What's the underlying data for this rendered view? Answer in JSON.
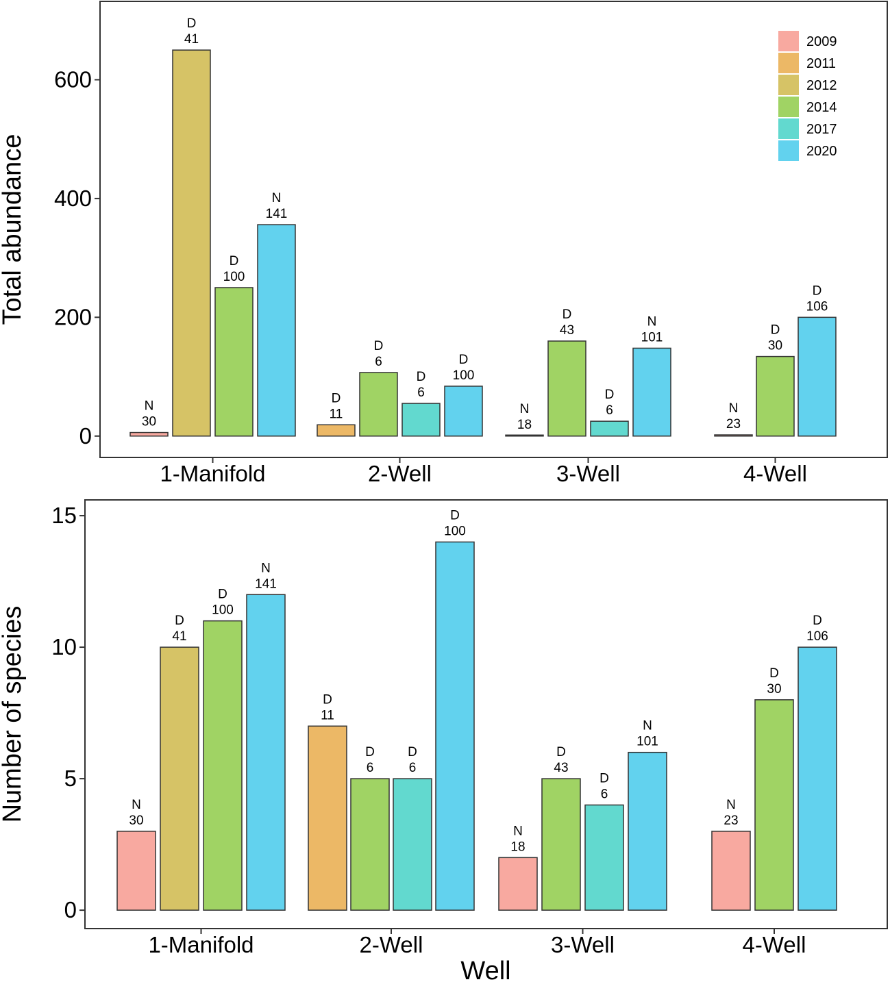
{
  "chart_data": [
    {
      "type": "bar",
      "ylabel": "Total abundance",
      "xlabel": "",
      "ylim": [
        -36,
        732
      ],
      "yticks": [
        0,
        200,
        400,
        600
      ],
      "categories": [
        "1-Manifold",
        "2-Well",
        "3-Well",
        "4-Well"
      ],
      "groups": [
        {
          "category": "1-Manifold",
          "bars": [
            {
              "year": "2009",
              "value": 6,
              "code": "N",
              "count": "30"
            },
            {
              "year": "2012",
              "value": 650,
              "code": "D",
              "count": "41"
            },
            {
              "year": "2014",
              "value": 250,
              "code": "D",
              "count": "100"
            },
            {
              "year": "2020",
              "value": 356,
              "code": "N",
              "count": "141"
            }
          ]
        },
        {
          "category": "2-Well",
          "bars": [
            {
              "year": "2011",
              "value": 19,
              "code": "D",
              "count": "11"
            },
            {
              "year": "2014",
              "value": 107,
              "code": "D",
              "count": "6"
            },
            {
              "year": "2017",
              "value": 55,
              "code": "D",
              "count": "6"
            },
            {
              "year": "2020",
              "value": 84,
              "code": "D",
              "count": "100"
            }
          ]
        },
        {
          "category": "3-Well",
          "bars": [
            {
              "year": "2009",
              "value": 1,
              "code": "N",
              "count": "18"
            },
            {
              "year": "2014",
              "value": 160,
              "code": "D",
              "count": "43"
            },
            {
              "year": "2017",
              "value": 25,
              "code": "D",
              "count": "6"
            },
            {
              "year": "2020",
              "value": 148,
              "code": "N",
              "count": "101"
            }
          ]
        },
        {
          "category": "4-Well",
          "bars": [
            {
              "year": "2009",
              "value": 2,
              "code": "N",
              "count": "23"
            },
            {
              "year": "2014",
              "value": 134,
              "code": "D",
              "count": "30"
            },
            {
              "year": "2020",
              "value": 200,
              "code": "D",
              "count": "106"
            }
          ]
        }
      ]
    },
    {
      "type": "bar",
      "ylabel": "Number of species",
      "xlabel": "Well",
      "ylim": [
        -0.7,
        15.6
      ],
      "yticks": [
        0,
        5,
        10,
        15
      ],
      "categories": [
        "1-Manifold",
        "2-Well",
        "3-Well",
        "4-Well"
      ],
      "groups": [
        {
          "category": "1-Manifold",
          "bars": [
            {
              "year": "2009",
              "value": 3,
              "code": "N",
              "count": "30"
            },
            {
              "year": "2012",
              "value": 10,
              "code": "D",
              "count": "41"
            },
            {
              "year": "2014",
              "value": 11,
              "code": "D",
              "count": "100"
            },
            {
              "year": "2020",
              "value": 12,
              "code": "N",
              "count": "141"
            }
          ]
        },
        {
          "category": "2-Well",
          "bars": [
            {
              "year": "2011",
              "value": 7,
              "code": "D",
              "count": "11"
            },
            {
              "year": "2014",
              "value": 5,
              "code": "D",
              "count": "6"
            },
            {
              "year": "2017",
              "value": 5,
              "code": "D",
              "count": "6"
            },
            {
              "year": "2020",
              "value": 14,
              "code": "D",
              "count": "100"
            }
          ]
        },
        {
          "category": "3-Well",
          "bars": [
            {
              "year": "2009",
              "value": 2,
              "code": "N",
              "count": "18"
            },
            {
              "year": "2014",
              "value": 5,
              "code": "D",
              "count": "43"
            },
            {
              "year": "2017",
              "value": 4,
              "code": "D",
              "count": "6"
            },
            {
              "year": "2020",
              "value": 6,
              "code": "N",
              "count": "101"
            }
          ]
        },
        {
          "category": "4-Well",
          "bars": [
            {
              "year": "2009",
              "value": 3,
              "code": "N",
              "count": "23"
            },
            {
              "year": "2014",
              "value": 8,
              "code": "D",
              "count": "30"
            },
            {
              "year": "2020",
              "value": 10,
              "code": "D",
              "count": "106"
            }
          ]
        }
      ]
    }
  ],
  "legend": {
    "position": "top-right",
    "items": [
      {
        "label": "2009",
        "color": "#F8A9A0"
      },
      {
        "label": "2011",
        "color": "#ECB866"
      },
      {
        "label": "2012",
        "color": "#D6C366"
      },
      {
        "label": "2014",
        "color": "#A0D364"
      },
      {
        "label": "2017",
        "color": "#62D9CF"
      },
      {
        "label": "2020",
        "color": "#62D2EE"
      }
    ]
  }
}
